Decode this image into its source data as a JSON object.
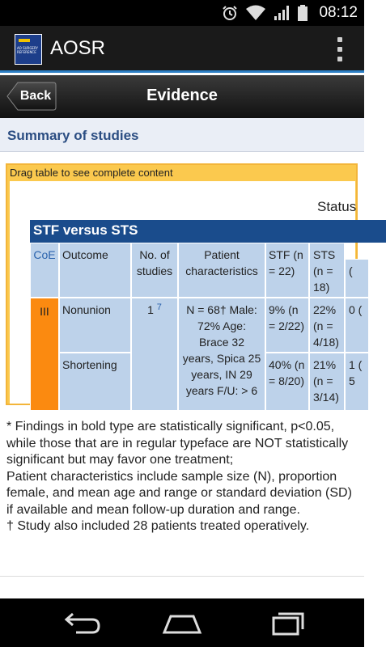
{
  "status_bar": {
    "time": "08:12",
    "icons": [
      "alarm-icon",
      "wifi-icon",
      "signal-icon",
      "battery-icon"
    ]
  },
  "app_bar": {
    "title": "AOSR",
    "logo_text": "AO SURGERY REFERENCE",
    "menu_icon": "overflow-menu-icon"
  },
  "nav_bar": {
    "back_label": "Back",
    "title": "Evidence"
  },
  "section": {
    "title": "Summary of studies"
  },
  "table": {
    "drag_hint": "Drag table to see complete content",
    "status_label": "Status",
    "group_title": "STF versus STS",
    "headers": {
      "coe": "CoE",
      "outcome": "Outcome",
      "studies": "No. of studies",
      "patient": "Patient characteristics",
      "stf": "STF (n = 22)",
      "sts": "STS (n = 18)",
      "next": "("
    },
    "row": {
      "coe": "III",
      "studies_count": "1",
      "studies_ref": "7",
      "patient": "N = 68† Male: 72% Age: Brace 32 years, Spica 25 years, IN 29 years F/U: > 6"
    },
    "rows": [
      {
        "outcome": "Nonunion",
        "stf": "9% (n = 2/22)",
        "sts": "22% (n = 4/18)",
        "next": "0 (\n"
      },
      {
        "outcome": "Shortening",
        "stf": "40% (n = 8/20)",
        "sts": "21% (n = 3/14)",
        "next": "1 (\n5"
      }
    ]
  },
  "footnotes": [
    "* Findings in bold type are statistically significant, p<0.05, while those that are in regular typeface are NOT statistically significant but may favor one treatment;",
    "Patient characteristics include sample size (N), proportion female, and mean age and range or standard deviation (SD) if available and mean follow-up duration and range.",
    "† Study also included 28 patients treated operatively."
  ],
  "system_nav": [
    "back-icon",
    "home-icon",
    "recents-icon"
  ]
}
